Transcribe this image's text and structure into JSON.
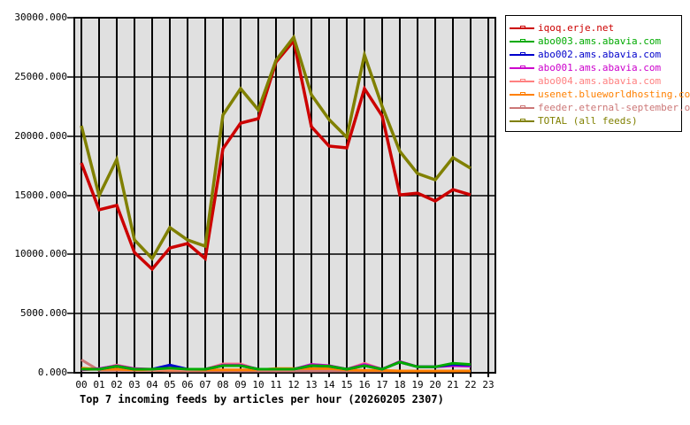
{
  "chart_data": {
    "type": "line",
    "title": "Top 7 incoming feeds by articles per hour (20260205 2307)",
    "xlabel": "",
    "ylabel": "",
    "ylim": [
      0,
      30000
    ],
    "grid": true,
    "legend_position": "right",
    "x": [
      "00",
      "01",
      "02",
      "03",
      "04",
      "05",
      "06",
      "07",
      "08",
      "09",
      "10",
      "11",
      "12",
      "13",
      "14",
      "15",
      "16",
      "17",
      "18",
      "19",
      "20",
      "21",
      "22",
      "23"
    ],
    "yticks": [
      "0.000",
      "5000.000",
      "10000.000",
      "15000.000",
      "20000.000",
      "25000.000",
      "30000.000"
    ],
    "series": [
      {
        "name": "iqoq.erje.net",
        "color": "#cc0000",
        "values": [
          17730,
          13770,
          14140,
          10170,
          8750,
          10550,
          10920,
          9650,
          18930,
          21100,
          21470,
          26250,
          28050,
          20800,
          19150,
          19000,
          24010,
          21700,
          15030,
          15180,
          14510,
          15480,
          15030
        ]
      },
      {
        "name": "abo003.ams.abavia.com",
        "color": "#00aa00",
        "values": [
          300,
          300,
          550,
          300,
          300,
          400,
          300,
          300,
          600,
          600,
          300,
          300,
          300,
          600,
          550,
          300,
          600,
          300,
          900,
          500,
          500,
          800,
          700
        ]
      },
      {
        "name": "abo002.ams.abavia.com",
        "color": "#0000cc",
        "values": [
          300,
          300,
          550,
          300,
          300,
          650,
          300,
          300,
          600,
          600,
          300,
          300,
          300,
          600,
          550,
          300,
          600,
          300,
          900,
          500,
          500,
          700,
          650
        ]
      },
      {
        "name": "abo001.ams.abavia.com",
        "color": "#cc00cc",
        "values": [
          250,
          350,
          600,
          350,
          300,
          450,
          300,
          300,
          650,
          650,
          300,
          300,
          300,
          700,
          600,
          300,
          700,
          300,
          950,
          500,
          500,
          600,
          550
        ]
      },
      {
        "name": "abo004.ams.abavia.com",
        "color": "#ff8080",
        "values": [
          250,
          300,
          650,
          350,
          250,
          300,
          250,
          300,
          750,
          750,
          250,
          250,
          250,
          700,
          600,
          300,
          800,
          300,
          950,
          500,
          500,
          650,
          600
        ]
      },
      {
        "name": "usenet.blueworldhosting.com",
        "color": "#ff8000",
        "values": [
          400,
          300,
          300,
          250,
          250,
          250,
          250,
          250,
          250,
          250,
          250,
          350,
          350,
          350,
          350,
          250,
          200,
          200,
          150,
          150,
          150,
          150,
          150
        ]
      },
      {
        "name": "feeder.eternal-september.org",
        "color": "#cc7777",
        "values": [
          1100,
          200,
          200,
          200,
          200,
          150,
          150,
          150,
          150,
          150,
          150,
          150,
          150,
          150,
          150,
          150,
          150,
          150,
          150,
          150,
          150,
          150,
          150
        ]
      },
      {
        "name": "TOTAL (all feeds)",
        "color": "#808000",
        "values": [
          20870,
          14960,
          18030,
          11220,
          9650,
          12270,
          11220,
          10700,
          21770,
          24010,
          22210,
          26400,
          28350,
          23490,
          21400,
          19900,
          26850,
          22510,
          18700,
          16830,
          16300,
          18180,
          17280
        ]
      }
    ]
  },
  "plot": {
    "background": "#e0e0e0",
    "frame_color": "#000000"
  },
  "legend": {
    "items": [
      {
        "label": "iqoq.erje.net",
        "color": "#cc0000"
      },
      {
        "label": "abo003.ams.abavia.com",
        "color": "#00aa00"
      },
      {
        "label": "abo002.ams.abavia.com",
        "color": "#0000cc"
      },
      {
        "label": "abo001.ams.abavia.com",
        "color": "#cc00cc"
      },
      {
        "label": "abo004.ams.abavia.com",
        "color": "#ff8080"
      },
      {
        "label": "usenet.blueworldhosting.com",
        "color": "#ff8000"
      },
      {
        "label": "feeder.eternal-september.org",
        "color": "#cc7777"
      },
      {
        "label": "TOTAL (all feeds)",
        "color": "#808000"
      }
    ]
  }
}
